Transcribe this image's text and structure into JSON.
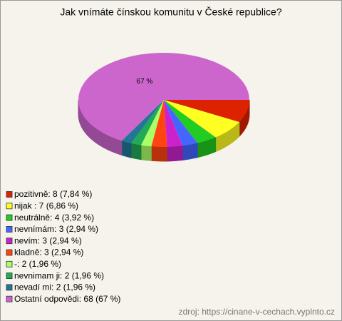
{
  "chart_data": {
    "type": "pie3d",
    "title": "Jak vnímáte čínskou komunitu v České republice?",
    "categories": [
      "pozitivně: 8 (7,84 %)",
      "nijak : 7 (6,86 %)",
      "neutrálně: 4 (3,92 %)",
      "nevnímám: 3 (2,94 %)",
      "nevím: 3 (2,94 %)",
      "kladně: 3 (2,94 %)",
      "-: 2 (1,96 %)",
      "nevnimam ji: 2 (1,96 %)",
      "nevadí mi: 2 (1,96 %)",
      "Ostatní odpovědi: 68 (67 %)"
    ],
    "values": [
      7.84,
      6.86,
      3.92,
      2.94,
      2.94,
      2.94,
      1.96,
      1.96,
      1.96,
      67
    ],
    "value_labels": [
      null,
      null,
      null,
      null,
      null,
      null,
      null,
      null,
      null,
      "67 %"
    ],
    "colors": [
      "#dd2200",
      "#ffff22",
      "#22cc22",
      "#4466ff",
      "#cc22cc",
      "#ff4411",
      "#aaff66",
      "#22aa55",
      "#227799",
      "#cc66cc"
    ],
    "source": "zdroj: https://cinane-v-cechach.vyplnto.cz"
  }
}
